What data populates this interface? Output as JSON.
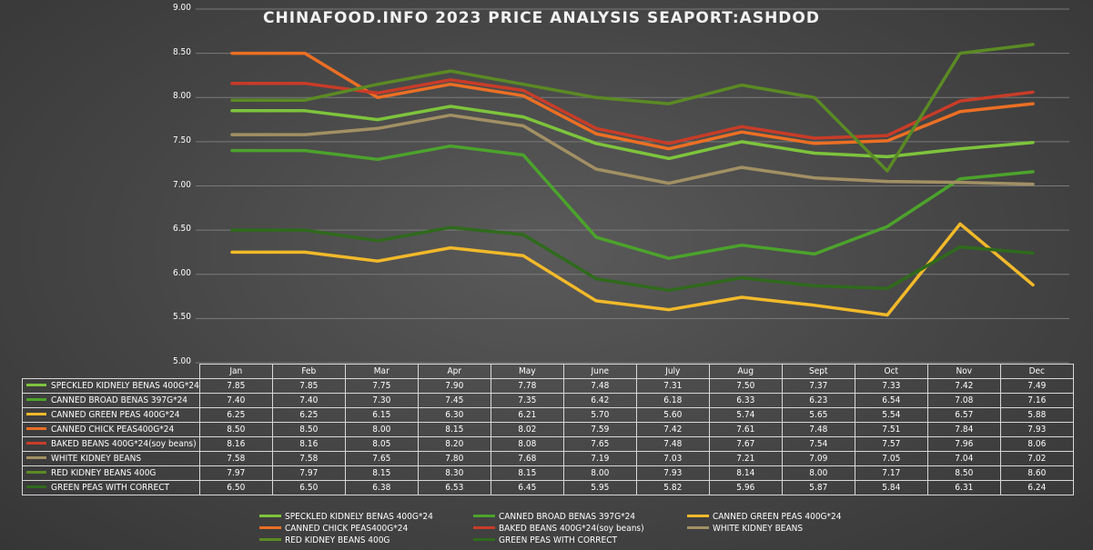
{
  "chart_data": {
    "type": "line",
    "title": "CHINAFOOD.INFO  2023 PRICE ANALYSIS  SEAPORT:ASHDOD",
    "categories": [
      "Jan",
      "Feb",
      "Mar",
      "Apr",
      "May",
      "June",
      "July",
      "Aug",
      "Sept",
      "Oct",
      "Nov",
      "Dec"
    ],
    "ylim": [
      5.0,
      9.0
    ],
    "yticks": [
      "9.00",
      "8.50",
      "8.00",
      "7.50",
      "7.00",
      "6.50",
      "6.00",
      "5.50",
      "5.00"
    ],
    "grid": true,
    "legend_position": "bottom",
    "series": [
      {
        "name": "SPECKLED KIDNELY BENAS 400G*24",
        "color": "#7dc43c",
        "values": [
          7.85,
          7.85,
          7.75,
          7.9,
          7.78,
          7.48,
          7.31,
          7.5,
          7.37,
          7.33,
          7.42,
          7.49
        ]
      },
      {
        "name": "CANNED BROAD BENAS 397G*24",
        "color": "#4ca32c",
        "values": [
          7.4,
          7.4,
          7.3,
          7.45,
          7.35,
          6.42,
          6.18,
          6.33,
          6.23,
          6.54,
          7.08,
          7.16
        ]
      },
      {
        "name": "CANNED GREEN PEAS 400G*24",
        "color": "#f2b92a",
        "values": [
          6.25,
          6.25,
          6.15,
          6.3,
          6.21,
          5.7,
          5.6,
          5.74,
          5.65,
          5.54,
          6.57,
          5.88
        ]
      },
      {
        "name": "CANNED CHICK PEAS400G*24",
        "color": "#ec6f24",
        "values": [
          8.5,
          8.5,
          8.0,
          8.15,
          8.02,
          7.59,
          7.42,
          7.61,
          7.48,
          7.51,
          7.84,
          7.93
        ]
      },
      {
        "name": "BAKED BEANS 400G*24(soy beans)",
        "color": "#c83c28",
        "values": [
          8.16,
          8.16,
          8.05,
          8.2,
          8.08,
          7.65,
          7.48,
          7.67,
          7.54,
          7.57,
          7.96,
          8.06
        ]
      },
      {
        "name": "WHITE KIDNEY BEANS",
        "color": "#a29064",
        "values": [
          7.58,
          7.58,
          7.65,
          7.8,
          7.68,
          7.19,
          7.03,
          7.21,
          7.09,
          7.05,
          7.04,
          7.02
        ]
      },
      {
        "name": "RED KIDNEY BEANS 400G",
        "color": "#5b8a24",
        "values": [
          7.97,
          7.97,
          8.15,
          8.3,
          8.15,
          8.0,
          7.93,
          8.14,
          8.0,
          7.17,
          8.5,
          8.6
        ]
      },
      {
        "name": "GREEN PEAS WITH CORRECT",
        "color": "#2f6a1c",
        "values": [
          6.5,
          6.5,
          6.38,
          6.53,
          6.45,
          5.95,
          5.82,
          5.96,
          5.87,
          5.84,
          6.31,
          6.24
        ]
      }
    ]
  }
}
